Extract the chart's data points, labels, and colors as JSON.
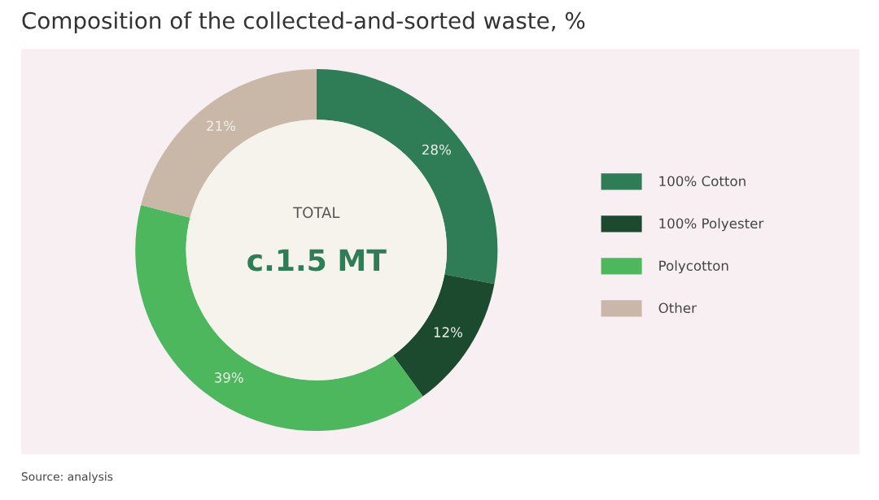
{
  "chart_data": {
    "type": "donut",
    "title": "Composition of the collected-and-sorted waste, %",
    "categories": [
      "100% Cotton",
      "100% Polyester",
      "Polycotton",
      "Other"
    ],
    "values": [
      28,
      12,
      39,
      21
    ],
    "colors": [
      "#2e7d57",
      "#1b4a2f",
      "#4cb75c",
      "#c9b8a8"
    ],
    "value_labels": [
      "28%",
      "12%",
      "39%",
      "21%"
    ],
    "legend": "right",
    "annotations": [
      "TOTAL",
      "c.1.5 MT",
      "Source: analysis"
    ]
  }
}
